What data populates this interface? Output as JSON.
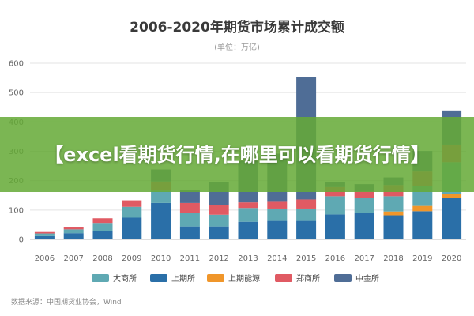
{
  "chart_data": {
    "type": "bar",
    "stacked": true,
    "title": "2006-2020年期货市场累计成交额",
    "subtitle": "(单位：万亿)",
    "categories": [
      "2006",
      "2007",
      "2008",
      "2009",
      "2010",
      "2011",
      "2012",
      "2013",
      "2014",
      "2015",
      "2016",
      "2017",
      "2018",
      "2019",
      "2020"
    ],
    "ylim": [
      0,
      600
    ],
    "yticks": [
      0,
      100,
      200,
      300,
      400,
      500,
      600
    ],
    "grid": true,
    "legend_position": "bottom",
    "series": [
      {
        "name": "上期所",
        "color": "#2a6fa8",
        "values": [
          11,
          21,
          28,
          74,
          124,
          44,
          44,
          60,
          63,
          63,
          85,
          90,
          82,
          96,
          140
        ]
      },
      {
        "name": "上期能源",
        "color": "#f0962a",
        "values": [
          0,
          0,
          0,
          0,
          0,
          0,
          0,
          0,
          0,
          0,
          0,
          0,
          13,
          18,
          14
        ]
      },
      {
        "name": "大商所",
        "color": "#5fa9b3",
        "values": [
          9,
          13,
          28,
          37,
          42,
          46,
          40,
          47,
          42,
          42,
          62,
          52,
          52,
          68,
          109
        ]
      },
      {
        "name": "郑商所",
        "color": "#e05a63",
        "values": [
          5,
          9,
          16,
          22,
          31,
          34,
          34,
          19,
          23,
          31,
          31,
          21,
          38,
          49,
          60
        ]
      },
      {
        "name": "中金所",
        "color": "#4f6d96",
        "values": [
          0,
          0,
          0,
          0,
          41,
          44,
          76,
          141,
          164,
          417,
          18,
          25,
          26,
          70,
          116
        ]
      }
    ],
    "legend_order": [
      "大商所",
      "上期所",
      "上期能源",
      "郑商所",
      "中金所"
    ],
    "source": "数据来源：中国期货业协会，Wind"
  },
  "banner": {
    "text": "【excel看期货行情,在哪里可以看期货行情】"
  }
}
